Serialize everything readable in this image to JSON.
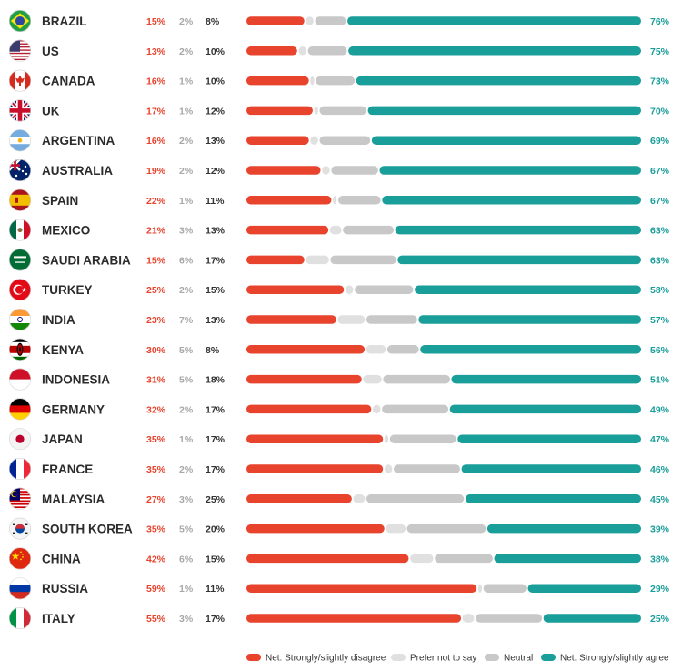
{
  "colors": {
    "disagree": "#e8432d",
    "prefer_not": "#e0e0e0",
    "neutral": "#c8c8c8",
    "agree": "#1a9e9a",
    "disagree_text": "#e8432d",
    "prefer_not_text": "#a8a8a8",
    "neutral_text": "#333333",
    "agree_text": "#1a9e9a"
  },
  "chart_data": {
    "type": "bar",
    "orientation": "horizontal",
    "stacked": true,
    "grid": false,
    "legend_position": "bottom",
    "categories": [
      "BRAZIL",
      "US",
      "CANADA",
      "UK",
      "ARGENTINA",
      "AUSTRALIA",
      "SPAIN",
      "MEXICO",
      "SAUDI ARABIA",
      "TURKEY",
      "INDIA",
      "KENYA",
      "INDONESIA",
      "GERMANY",
      "JAPAN",
      "FRANCE",
      "MALAYSIA",
      "SOUTH KOREA",
      "CHINA",
      "RUSSIA",
      "ITALY"
    ],
    "flag_icons": [
      "brazil-flag-icon",
      "us-flag-icon",
      "canada-flag-icon",
      "uk-flag-icon",
      "argentina-flag-icon",
      "australia-flag-icon",
      "spain-flag-icon",
      "mexico-flag-icon",
      "saudi-arabia-flag-icon",
      "turkey-flag-icon",
      "india-flag-icon",
      "kenya-flag-icon",
      "indonesia-flag-icon",
      "germany-flag-icon",
      "japan-flag-icon",
      "france-flag-icon",
      "malaysia-flag-icon",
      "south-korea-flag-icon",
      "china-flag-icon",
      "russia-flag-icon",
      "italy-flag-icon"
    ],
    "series": [
      {
        "name": "Net: Strongly/slightly disagree",
        "key": "disagree",
        "values": [
          15,
          13,
          16,
          17,
          16,
          19,
          22,
          21,
          15,
          25,
          23,
          30,
          31,
          32,
          35,
          35,
          27,
          35,
          42,
          59,
          55
        ]
      },
      {
        "name": "Prefer not to say",
        "key": "prefer_not",
        "values": [
          2,
          2,
          1,
          1,
          2,
          2,
          1,
          3,
          6,
          2,
          7,
          5,
          5,
          2,
          1,
          2,
          3,
          5,
          6,
          1,
          3
        ]
      },
      {
        "name": "Neutral",
        "key": "neutral",
        "values": [
          8,
          10,
          10,
          12,
          13,
          12,
          11,
          13,
          17,
          15,
          13,
          8,
          18,
          17,
          17,
          17,
          25,
          20,
          15,
          11,
          17
        ]
      },
      {
        "name": "Net: Strongly/slightly agree",
        "key": "agree",
        "values": [
          76,
          75,
          73,
          70,
          69,
          67,
          67,
          63,
          63,
          58,
          57,
          56,
          51,
          49,
          47,
          46,
          45,
          39,
          38,
          29,
          25
        ]
      }
    ],
    "value_labels": {
      "disagree": [
        "15%",
        "13%",
        "16%",
        "17%",
        "16%",
        "19%",
        "22%",
        "21%",
        "15%",
        "25%",
        "23%",
        "30%",
        "31%",
        "32%",
        "35%",
        "35%",
        "27%",
        "35%",
        "42%",
        "59%",
        "55%"
      ],
      "prefer_not": [
        "2%",
        "2%",
        "1%",
        "1%",
        "2%",
        "2%",
        "1%",
        "3%",
        "6%",
        "2%",
        "7%",
        "5%",
        "5%",
        "2%",
        "1%",
        "2%",
        "3%",
        "5%",
        "6%",
        "1%",
        "3%"
      ],
      "neutral": [
        "8%",
        "10%",
        "10%",
        "12%",
        "13%",
        "12%",
        "11%",
        "13%",
        "17%",
        "15%",
        "13%",
        "8%",
        "18%",
        "17%",
        "17%",
        "17%",
        "25%",
        "20%",
        "15%",
        "11%",
        "17%"
      ],
      "agree": [
        "76%",
        "75%",
        "73%",
        "70%",
        "69%",
        "67%",
        "67%",
        "63%",
        "63%",
        "58%",
        "57%",
        "56%",
        "51%",
        "49%",
        "47%",
        "46%",
        "45%",
        "39%",
        "38%",
        "29%",
        "25%"
      ]
    }
  }
}
